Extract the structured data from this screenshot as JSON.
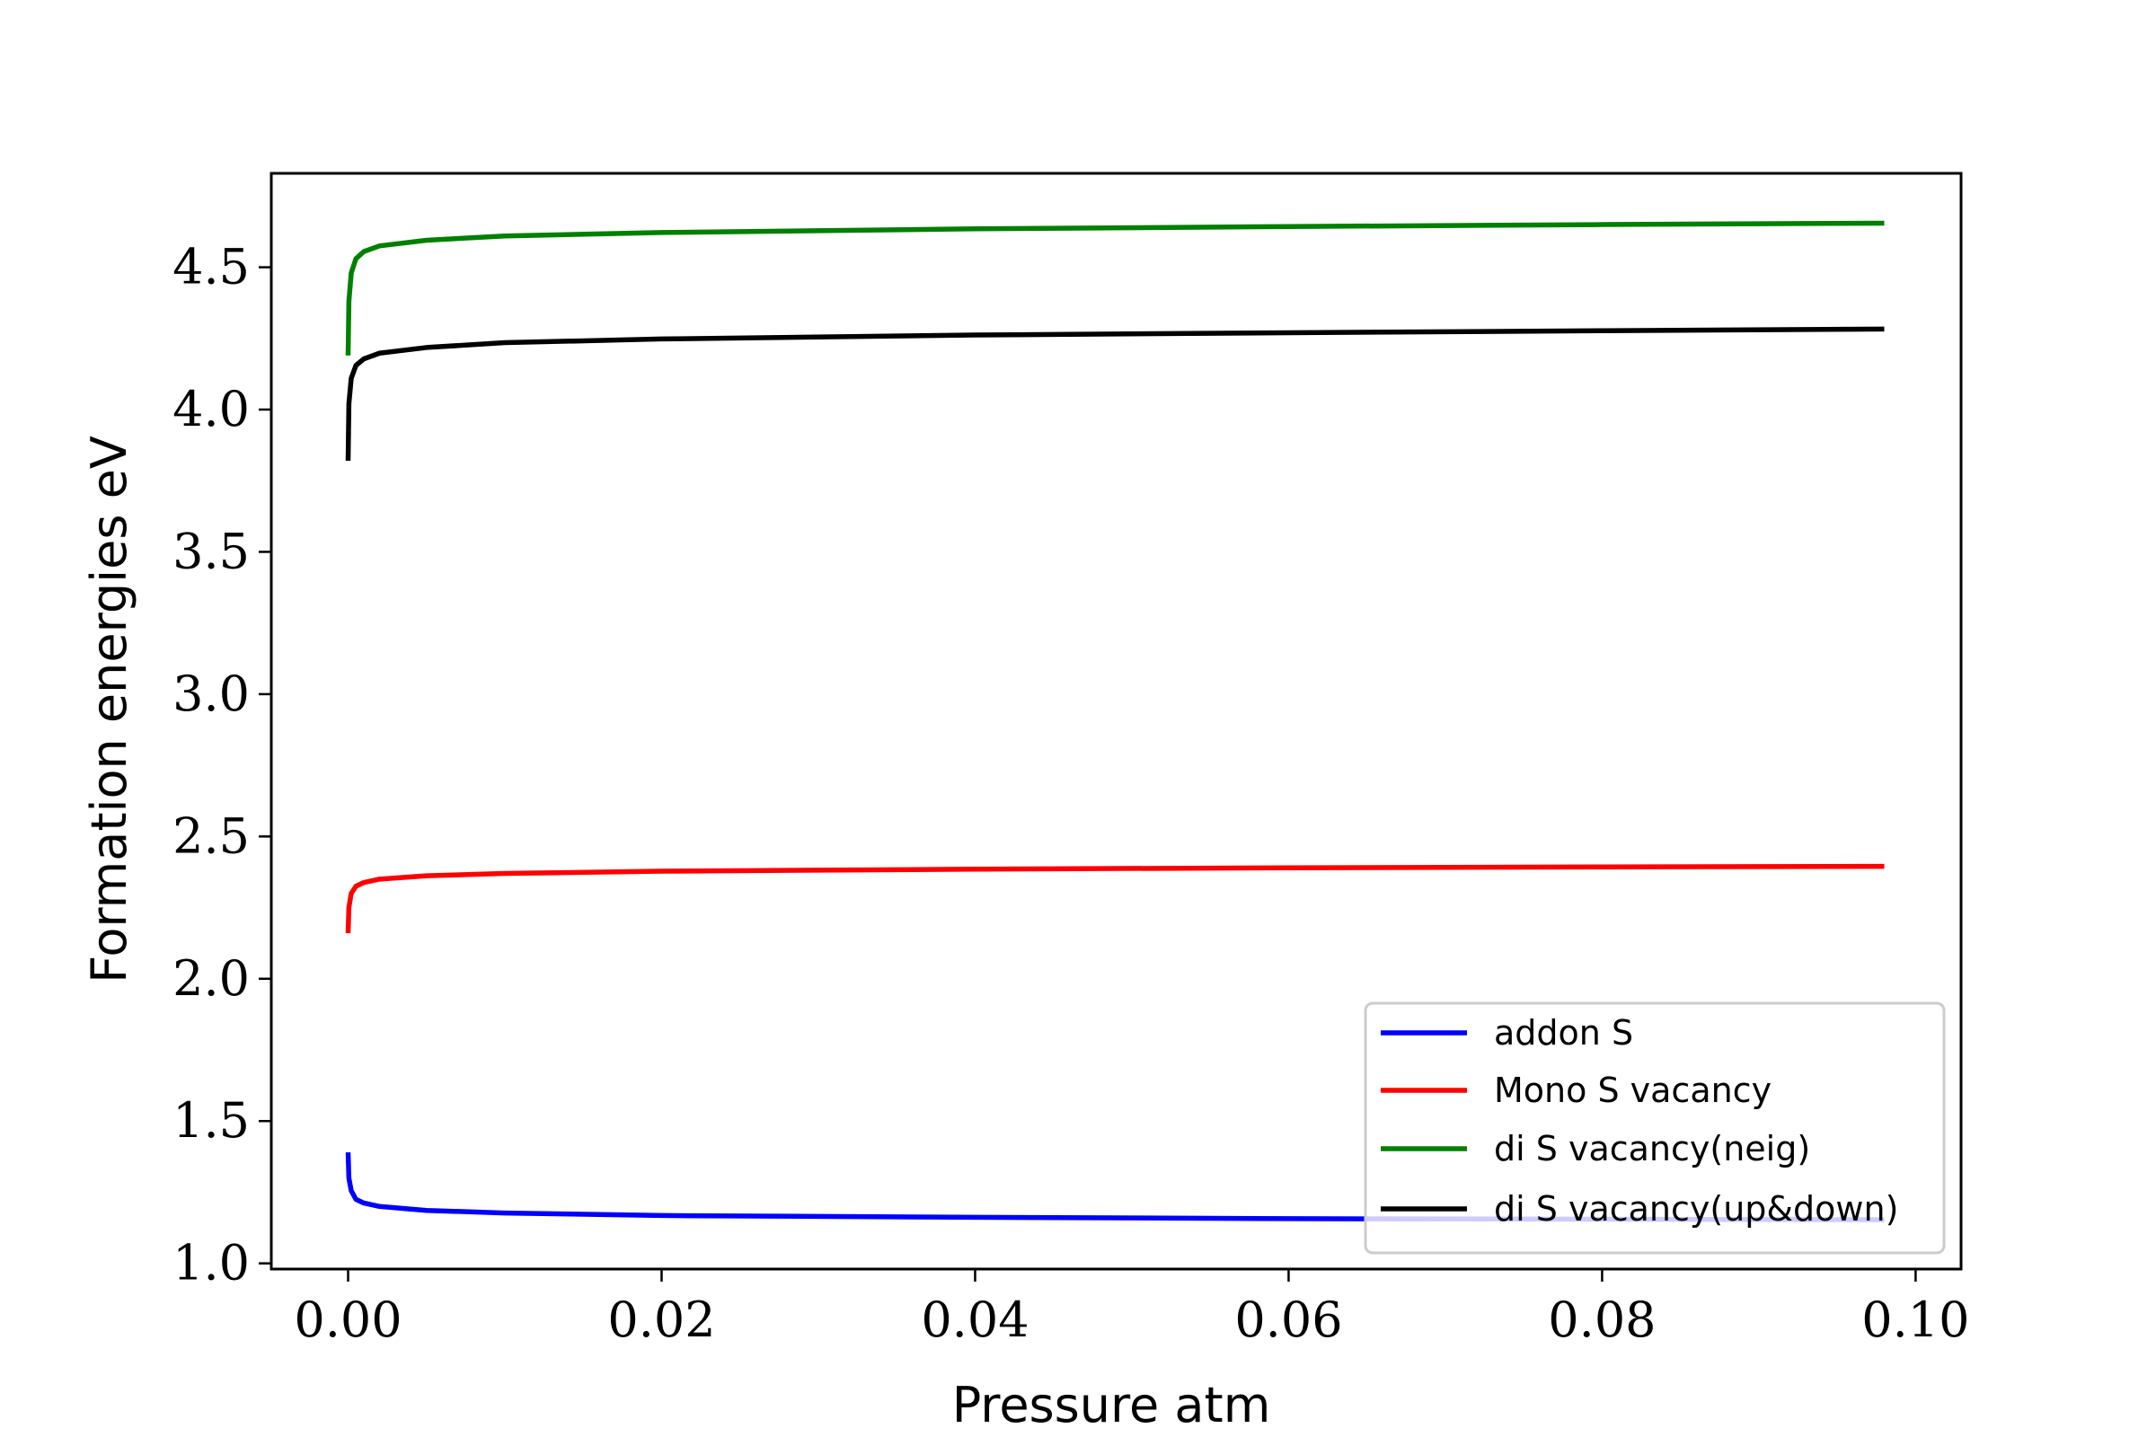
{
  "chart_data": {
    "type": "line",
    "title": "",
    "xlabel": "Pressure atm",
    "ylabel": "Formation energies eV",
    "xlim": [
      -0.0049,
      0.1029
    ],
    "ylim": [
      0.98,
      4.83
    ],
    "xticks": [
      {
        "value": 0.0,
        "label": "0.00"
      },
      {
        "value": 0.02,
        "label": "0.02"
      },
      {
        "value": 0.04,
        "label": "0.04"
      },
      {
        "value": 0.06,
        "label": "0.06"
      },
      {
        "value": 0.08,
        "label": "0.08"
      },
      {
        "value": 0.1,
        "label": "0.10"
      }
    ],
    "yticks": [
      {
        "value": 1.0,
        "label": "1.0"
      },
      {
        "value": 1.5,
        "label": "1.5"
      },
      {
        "value": 2.0,
        "label": "2.0"
      },
      {
        "value": 2.5,
        "label": "2.5"
      },
      {
        "value": 3.0,
        "label": "3.0"
      },
      {
        "value": 3.5,
        "label": "3.5"
      },
      {
        "value": 4.0,
        "label": "4.0"
      },
      {
        "value": 4.5,
        "label": "4.5"
      }
    ],
    "grid": false,
    "legend_position": "lower-right",
    "series": [
      {
        "name": "addon S",
        "color": "#0000ff",
        "x": [
          0.0,
          5e-05,
          0.0002,
          0.0005,
          0.001,
          0.002,
          0.005,
          0.01,
          0.02,
          0.04,
          0.06,
          0.08,
          0.098
        ],
        "y": [
          1.39,
          1.3,
          1.255,
          1.225,
          1.212,
          1.2,
          1.186,
          1.177,
          1.168,
          1.162,
          1.157,
          1.155,
          1.153
        ]
      },
      {
        "name": "Mono S vacancy",
        "color": "#ff0000",
        "x": [
          0.0,
          5e-05,
          0.0002,
          0.0005,
          0.001,
          0.002,
          0.005,
          0.01,
          0.02,
          0.04,
          0.06,
          0.08,
          0.098
        ],
        "y": [
          2.16,
          2.25,
          2.3,
          2.325,
          2.338,
          2.35,
          2.362,
          2.37,
          2.378,
          2.385,
          2.39,
          2.393,
          2.395
        ]
      },
      {
        "name": "di S vacancy(neig)",
        "color": "#008000",
        "x": [
          0.0,
          5e-05,
          0.0002,
          0.0005,
          0.001,
          0.002,
          0.005,
          0.01,
          0.02,
          0.04,
          0.06,
          0.08,
          0.098
        ],
        "y": [
          4.19,
          4.38,
          4.48,
          4.53,
          4.555,
          4.575,
          4.595,
          4.61,
          4.622,
          4.635,
          4.643,
          4.65,
          4.655
        ]
      },
      {
        "name": "di S vacancy(up&down)",
        "color": "#000000",
        "x": [
          0.0,
          5e-05,
          0.0002,
          0.0005,
          0.001,
          0.002,
          0.005,
          0.01,
          0.02,
          0.04,
          0.06,
          0.08,
          0.098
        ],
        "y": [
          3.82,
          4.02,
          4.11,
          4.155,
          4.178,
          4.198,
          4.218,
          4.235,
          4.248,
          4.262,
          4.27,
          4.277,
          4.283
        ]
      }
    ]
  }
}
